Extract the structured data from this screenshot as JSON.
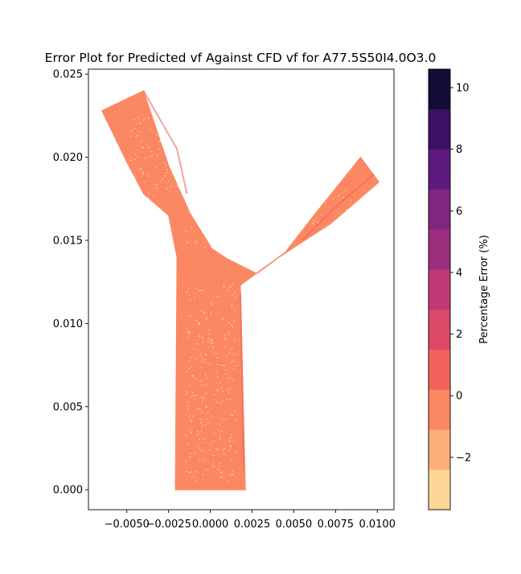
{
  "chart_data": {
    "type": "scatter",
    "title": "Error Plot for Predicted vf Against CFD vf for A77.5S50I4.0O3.0",
    "xlabel": "",
    "ylabel": "",
    "xlim": [
      -0.0073,
      0.011
    ],
    "ylim": [
      -0.0012,
      0.0253
    ],
    "x_ticks": [
      -0.005,
      -0.0025,
      0.0,
      0.0025,
      0.005,
      0.0075,
      0.01
    ],
    "x_tick_labels": [
      "−0.0050",
      "−0.0025",
      "0.0000",
      "0.0025",
      "0.0050",
      "0.0075",
      "0.0100"
    ],
    "y_ticks": [
      0.0,
      0.005,
      0.01,
      0.015,
      0.02,
      0.025
    ],
    "y_tick_labels": [
      "0.000",
      "0.005",
      "0.010",
      "0.015",
      "0.020",
      "0.025"
    ],
    "grid": false,
    "dominant_error_percent": -0.5,
    "colorbar": {
      "label": "Percentage Error (%)",
      "range": [
        -3.7,
        10.6
      ],
      "ticks": [
        -2,
        0,
        2,
        4,
        6,
        8,
        10
      ],
      "tick_labels": [
        "−2",
        "0",
        "2",
        "4",
        "6",
        "8",
        "10"
      ],
      "colormap": "magma_r",
      "band_colors": [
        "#fed798",
        "#fdaf7a",
        "#fb8862",
        "#f2645b",
        "#dc4868",
        "#bf3a74",
        "#9c2e7e",
        "#7f2681",
        "#5e1a7c",
        "#3d1163",
        "#140d35"
      ]
    },
    "geometry": {
      "description": "Y-shaped bifurcating vessel; scatter points of error values",
      "parent_branch": {
        "x_min": -0.002,
        "x_max": 0.002,
        "y_min": 0.0,
        "y_max": 0.0125
      },
      "left_branch_end": [
        -0.005,
        0.0235
      ],
      "right_branch_end": [
        0.0095,
        0.0185
      ],
      "bifurcation_point": [
        0.001,
        0.0137
      ]
    }
  }
}
